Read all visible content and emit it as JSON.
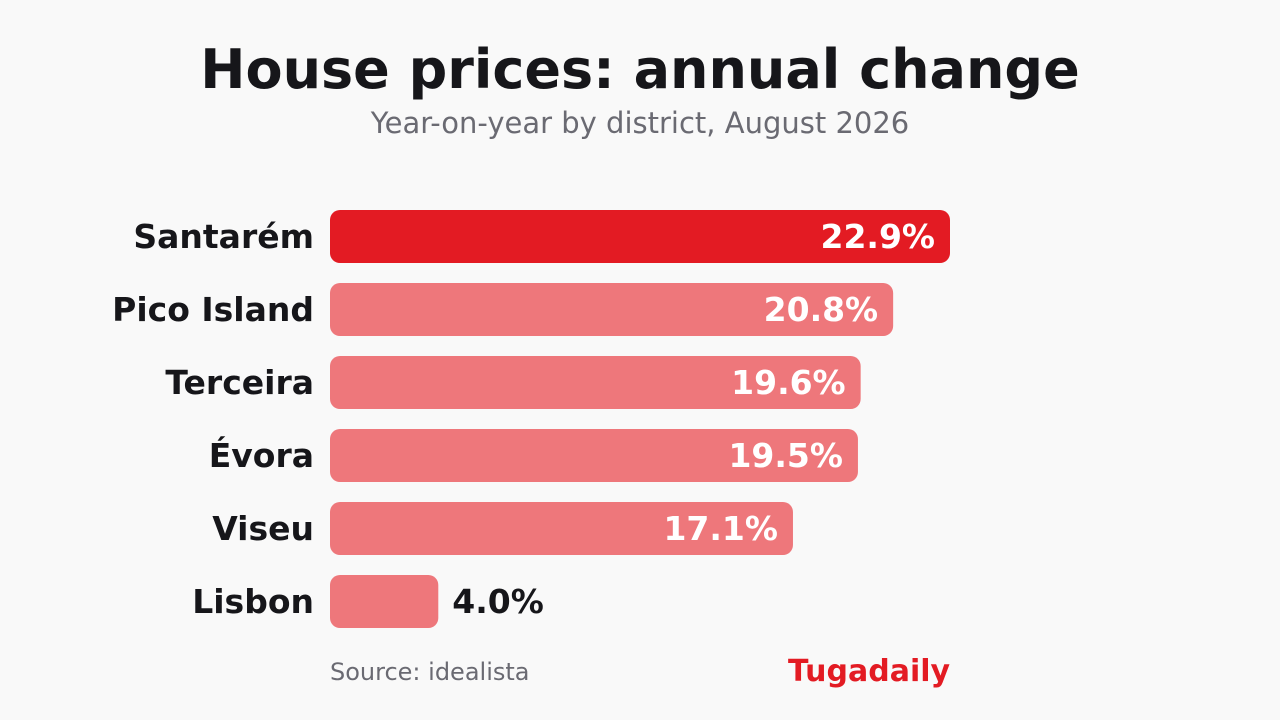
{
  "title": "House prices: annual change",
  "subtitle": "Year-on-year by district, August 2026",
  "source": "Source: idealista",
  "brand": "Tugadaily",
  "colors": {
    "highlight": "#e31b23",
    "bar": "#ee777b",
    "label_inside": "#ffffff",
    "label_outside": "#16161a"
  },
  "chart_data": {
    "type": "bar",
    "orientation": "horizontal",
    "categories": [
      "Santarém",
      "Pico Island",
      "Terceira",
      "Évora",
      "Viseu",
      "Lisbon"
    ],
    "values": [
      22.9,
      20.8,
      19.6,
      19.5,
      17.1,
      4.0
    ],
    "value_labels": [
      "22.9%",
      "20.8%",
      "19.6%",
      "19.5%",
      "17.1%",
      "4.0%"
    ],
    "highlight_index": 0,
    "unit": "%",
    "xlim": [
      0,
      22.9
    ],
    "grid": false,
    "legend": "none"
  }
}
